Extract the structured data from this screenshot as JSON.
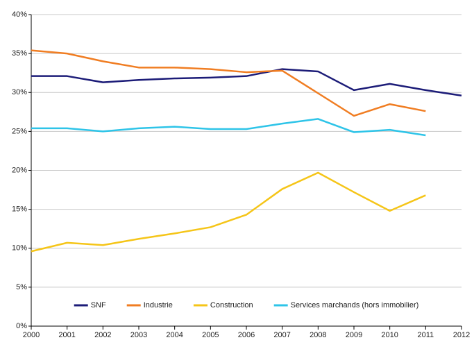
{
  "chart_data": {
    "type": "line",
    "x": [
      2000,
      2001,
      2002,
      2003,
      2004,
      2005,
      2006,
      2007,
      2008,
      2009,
      2010,
      2011,
      2012
    ],
    "series": [
      {
        "name": "SNF",
        "color": "#1c1c78",
        "values": [
          32.1,
          32.1,
          31.3,
          31.6,
          31.8,
          31.9,
          32.1,
          33.0,
          32.7,
          30.3,
          31.1,
          30.3,
          29.6
        ]
      },
      {
        "name": "Industrie",
        "color": "#f07d22",
        "values": [
          35.4,
          35.0,
          34.0,
          33.2,
          33.2,
          33.0,
          32.6,
          32.8,
          29.9,
          27.0,
          28.5,
          27.6,
          null
        ]
      },
      {
        "name": "Construction",
        "color": "#f5c518",
        "values": [
          9.6,
          10.7,
          10.4,
          11.2,
          11.9,
          12.7,
          14.3,
          17.6,
          19.7,
          17.2,
          14.8,
          16.8,
          null
        ]
      },
      {
        "name": "Services marchands (hors immobilier)",
        "color": "#2ec4e8",
        "values": [
          25.4,
          25.4,
          25.0,
          25.4,
          25.6,
          25.3,
          25.3,
          26.0,
          26.6,
          24.9,
          25.2,
          24.5,
          null
        ]
      }
    ],
    "xlim": [
      2000,
      2012
    ],
    "xticks": [
      2000,
      2001,
      2002,
      2003,
      2004,
      2005,
      2006,
      2007,
      2008,
      2009,
      2010,
      2011,
      2012
    ],
    "ylim": [
      0,
      40
    ],
    "yticks": [
      {
        "value": 0,
        "label": "0%"
      },
      {
        "value": 5,
        "label": "5%"
      },
      {
        "value": 10,
        "label": "10%"
      },
      {
        "value": 15,
        "label": "15%"
      },
      {
        "value": 20,
        "label": "20%"
      },
      {
        "value": 25,
        "label": "25%"
      },
      {
        "value": 30,
        "label": "30%"
      },
      {
        "value": 35,
        "label": "35%"
      },
      {
        "value": 40,
        "label": "40%"
      }
    ],
    "grid": true,
    "legend": "lower center"
  }
}
